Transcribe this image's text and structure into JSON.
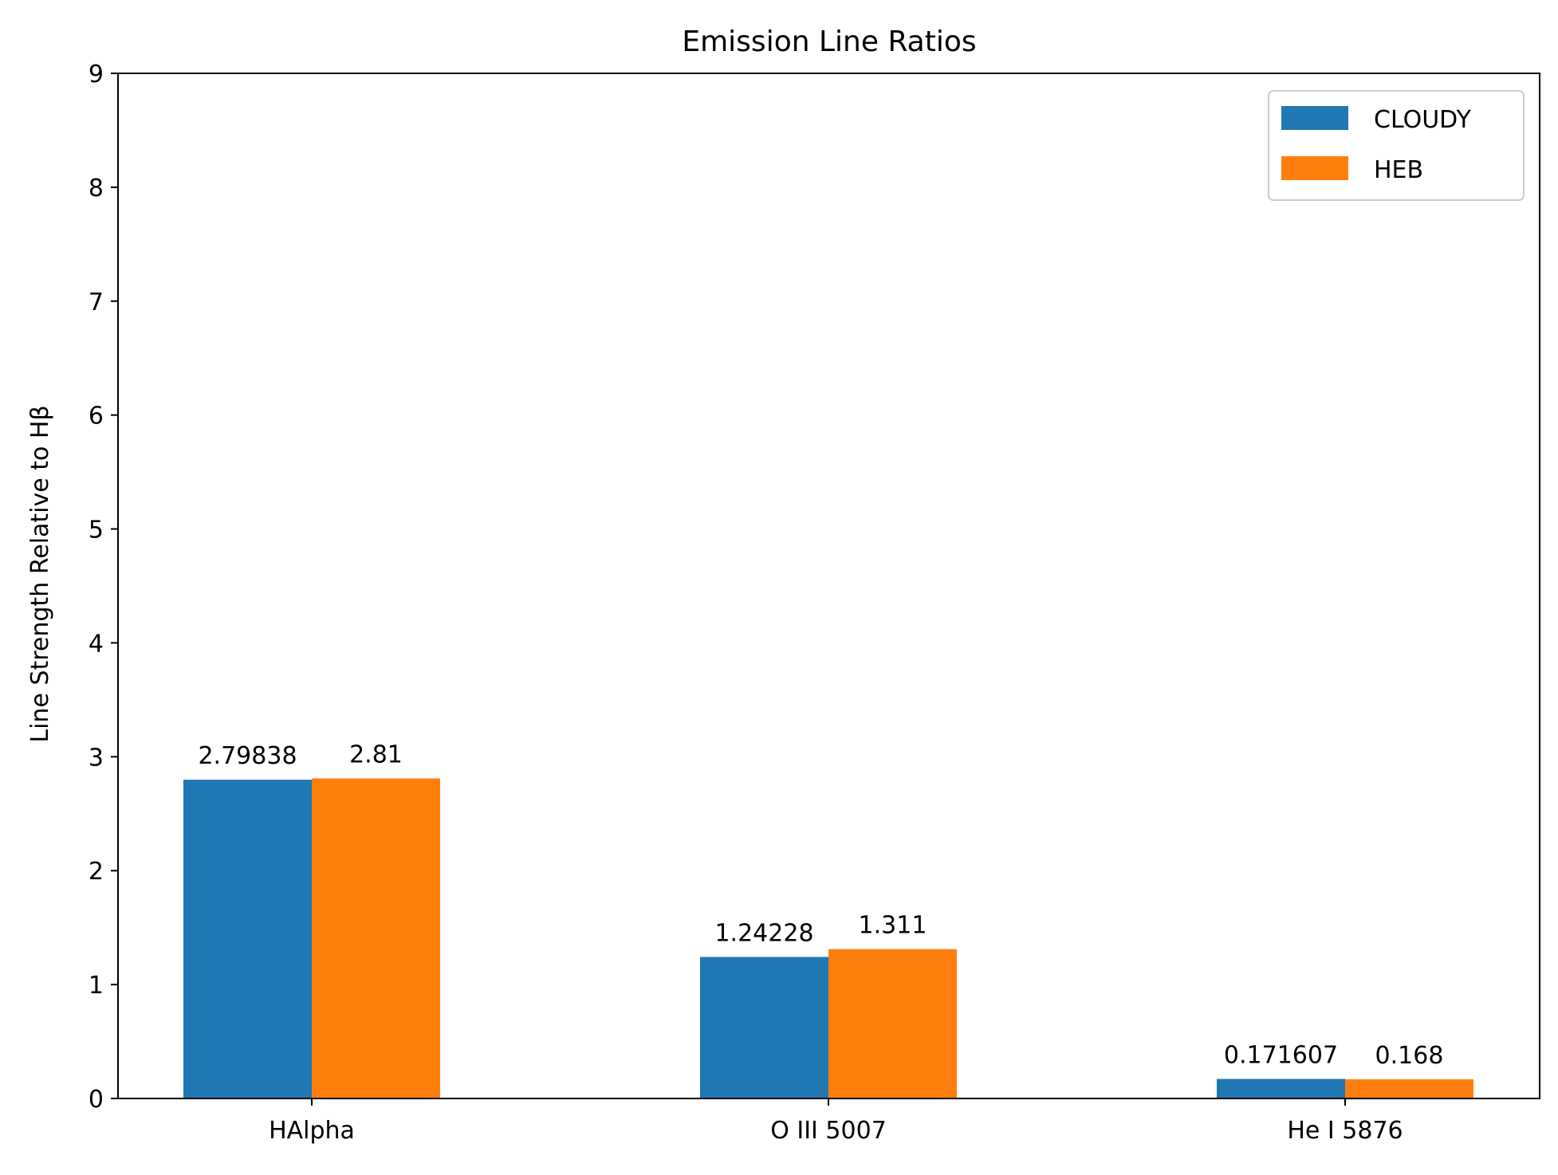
{
  "chart_data": {
    "type": "bar",
    "title": "Emission Line Ratios",
    "xlabel": "",
    "ylabel": "Line Strength Relative to Hβ",
    "categories": [
      "HAlpha",
      "O III 5007",
      "He I 5876"
    ],
    "series": [
      {
        "name": "CLOUDY",
        "values": [
          2.79838,
          1.24228,
          0.171607
        ],
        "labels": [
          "2.79838",
          "1.24228",
          "0.171607"
        ],
        "color": "#1f77b4"
      },
      {
        "name": "HEB",
        "values": [
          2.81,
          1.311,
          0.168
        ],
        "labels": [
          "2.81",
          "1.311",
          "0.168"
        ],
        "color": "#ff7f0e"
      }
    ],
    "ylim": [
      0,
      9
    ],
    "yticks": [
      "0",
      "1",
      "2",
      "3",
      "4",
      "5",
      "6",
      "7",
      "8",
      "9"
    ],
    "grid": false,
    "legend_position": "top-right"
  }
}
